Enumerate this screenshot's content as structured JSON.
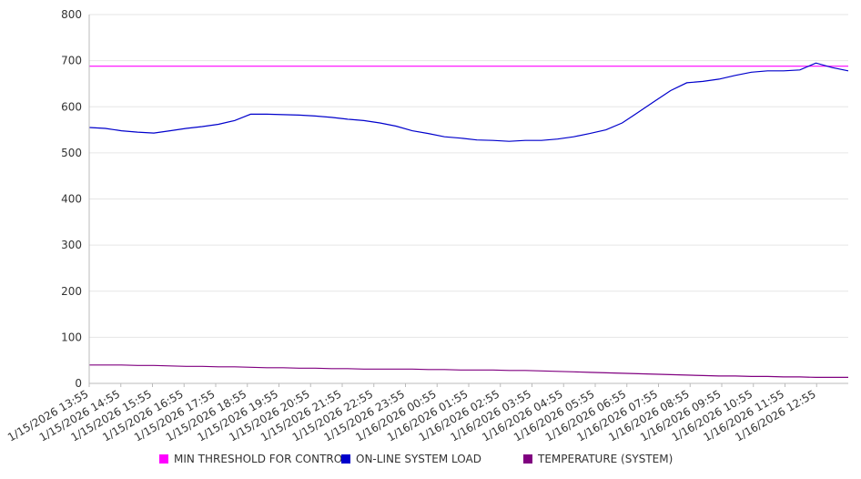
{
  "chart_data": {
    "type": "line",
    "title": "",
    "xlabel": "",
    "ylabel": "",
    "ylim": [
      0,
      800
    ],
    "y_ticks": [
      0,
      100,
      200,
      300,
      400,
      500,
      600,
      700,
      800
    ],
    "grid": true,
    "legend_position": "bottom",
    "x_ticks": [
      "1/15/2026 13:55",
      "1/15/2026 14:55",
      "1/15/2026 15:55",
      "1/15/2026 16:55",
      "1/15/2026 17:55",
      "1/15/2026 18:55",
      "1/15/2026 19:55",
      "1/15/2026 20:55",
      "1/15/2026 21:55",
      "1/15/2026 22:55",
      "1/15/2026 23:55",
      "1/16/2026 00:55",
      "1/16/2026 01:55",
      "1/16/2026 02:55",
      "1/16/2026 03:55",
      "1/16/2026 04:55",
      "1/16/2026 05:55",
      "1/16/2026 06:55",
      "1/16/2026 07:55",
      "1/16/2026 08:55",
      "1/16/2026 09:55",
      "1/16/2026 10:55",
      "1/16/2026 11:55",
      "1/16/2026 12:55"
    ],
    "x": [
      "1/15/2026 13:55",
      "1/15/2026 14:25",
      "1/15/2026 14:55",
      "1/15/2026 15:25",
      "1/15/2026 15:55",
      "1/15/2026 16:25",
      "1/15/2026 16:55",
      "1/15/2026 17:25",
      "1/15/2026 17:55",
      "1/15/2026 18:25",
      "1/15/2026 18:55",
      "1/15/2026 19:25",
      "1/15/2026 19:55",
      "1/15/2026 20:25",
      "1/15/2026 20:55",
      "1/15/2026 21:25",
      "1/15/2026 21:55",
      "1/15/2026 22:25",
      "1/15/2026 22:55",
      "1/15/2026 23:25",
      "1/15/2026 23:55",
      "1/16/2026 00:25",
      "1/16/2026 00:55",
      "1/16/2026 01:25",
      "1/16/2026 01:55",
      "1/16/2026 02:25",
      "1/16/2026 02:55",
      "1/16/2026 03:25",
      "1/16/2026 03:55",
      "1/16/2026 04:25",
      "1/16/2026 04:55",
      "1/16/2026 05:25",
      "1/16/2026 05:55",
      "1/16/2026 06:25",
      "1/16/2026 06:55",
      "1/16/2026 07:25",
      "1/16/2026 07:55",
      "1/16/2026 08:25",
      "1/16/2026 08:55",
      "1/16/2026 09:25",
      "1/16/2026 09:55",
      "1/16/2026 10:25",
      "1/16/2026 10:55",
      "1/16/2026 11:25",
      "1/16/2026 11:55",
      "1/16/2026 12:25",
      "1/16/2026 12:55",
      "1/16/2026 13:25"
    ],
    "series": [
      {
        "name": "MIN THRESHOLD FOR CONTROL",
        "color": "#ff00ff",
        "values": [
          688,
          688,
          688,
          688,
          688,
          688,
          688,
          688,
          688,
          688,
          688,
          688,
          688,
          688,
          688,
          688,
          688,
          688,
          688,
          688,
          688,
          688,
          688,
          688,
          688,
          688,
          688,
          688,
          688,
          688,
          688,
          688,
          688,
          688,
          688,
          688,
          688,
          688,
          688,
          688,
          688,
          688,
          688,
          688,
          688,
          688,
          688,
          688
        ]
      },
      {
        "name": "ON-LINE SYSTEM LOAD",
        "color": "#0000cc",
        "values": [
          555,
          553,
          548,
          545,
          543,
          548,
          553,
          557,
          562,
          570,
          584,
          584,
          583,
          582,
          580,
          577,
          573,
          570,
          565,
          558,
          548,
          542,
          535,
          532,
          528,
          527,
          525,
          527,
          527,
          530,
          535,
          542,
          550,
          565,
          588,
          612,
          635,
          652,
          655,
          660,
          668,
          675,
          678,
          678,
          680,
          695,
          685,
          678
        ]
      },
      {
        "name": "TEMPERATURE (SYSTEM)",
        "color": "#800080",
        "values": [
          40,
          40,
          40,
          39,
          39,
          38,
          37,
          37,
          36,
          36,
          35,
          34,
          34,
          33,
          33,
          32,
          32,
          31,
          31,
          31,
          31,
          30,
          30,
          29,
          29,
          29,
          28,
          28,
          27,
          26,
          25,
          24,
          23,
          22,
          21,
          20,
          19,
          18,
          17,
          16,
          16,
          15,
          15,
          14,
          14,
          13,
          13,
          13
        ]
      }
    ]
  }
}
